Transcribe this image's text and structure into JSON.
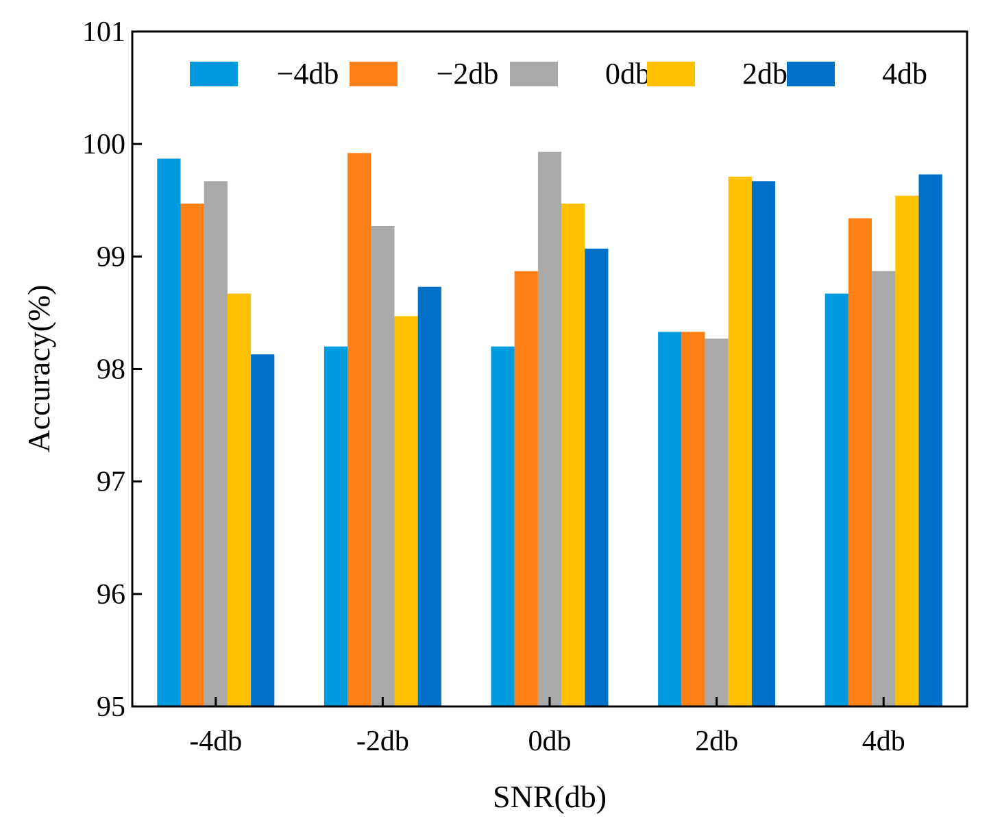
{
  "chart_data": {
    "type": "bar",
    "title": "",
    "xlabel": "SNR(db)",
    "ylabel": "Accuracy(%)",
    "ylim": [
      95,
      101
    ],
    "yticks": [
      "95",
      "96",
      "97",
      "98",
      "99",
      "100",
      "101"
    ],
    "categories": [
      "-4db",
      "-2db",
      "0db",
      "2db",
      "4db"
    ],
    "legend_position": "top",
    "grid": false,
    "series": [
      {
        "name": "−4db",
        "color": "#009ADE",
        "values": [
          99.87,
          98.2,
          98.2,
          98.33,
          98.67
        ]
      },
      {
        "name": "−2db",
        "color": "#FF7F17",
        "values": [
          99.47,
          99.92,
          98.87,
          98.33,
          99.34
        ]
      },
      {
        "name": "0db",
        "color": "#A9A9A9",
        "values": [
          99.67,
          99.27,
          99.93,
          98.27,
          98.87
        ]
      },
      {
        "name": "2db",
        "color": "#FFC000",
        "values": [
          98.67,
          98.47,
          99.47,
          99.71,
          99.54
        ]
      },
      {
        "name": "4db",
        "color": "#0070C8",
        "values": [
          98.13,
          98.73,
          99.07,
          99.67,
          99.73
        ]
      }
    ]
  }
}
